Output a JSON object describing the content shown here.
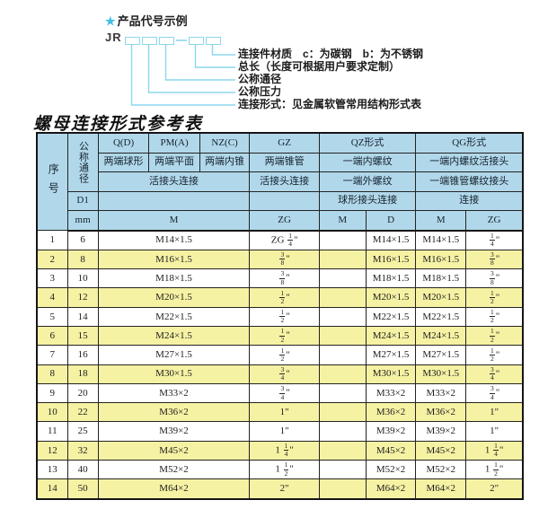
{
  "colors": {
    "header_bg": "#b1d8ea",
    "alt_row_bg": "#f6f2a4",
    "diagram_line": "#8cd7ec",
    "star": "#3fc0e4",
    "border": "#151515"
  },
  "diagram": {
    "star": "★",
    "heading": "产品代号示例",
    "code_prefix": "JR",
    "separator": "-",
    "boxes_before_dash": 3,
    "boxes_after_dash": 2,
    "labels": [
      "连接件材质　c：为碳钢　b：为不锈钢",
      "总长（长度可根据用户要求定制）",
      "公称通径",
      "公称压力",
      "连接形式：见金属软管常用结构形式表"
    ]
  },
  "table": {
    "title": "螺母连接形式参考表",
    "header": {
      "seq": "序号",
      "dn": "公称通径",
      "d1": "D1",
      "mm": "mm",
      "col_q": "Q(D)",
      "col_pm": "PM(A)",
      "col_nz": "NZ(C)",
      "col_gz": "GZ",
      "col_qz": "QZ形式",
      "col_qg": "QG形式",
      "q_desc": "两端球形",
      "pm_desc": "两端平面",
      "nz_desc": "两端内锥",
      "gz_desc": "两端锥管",
      "qz_desc1": "一端内螺纹",
      "qg_desc1": "一端内螺纹活接头",
      "union_conn": "活接头连接",
      "gz_conn": "活接头连接",
      "qz_desc2": "一端外螺纹",
      "qg_desc2": "一端锥管螺纹接头",
      "qz_conn": "球形接头连接",
      "qg_conn": "连接",
      "m_label": "M",
      "zg_label": "ZG",
      "qz_m_label": "M",
      "qz_d_label": "D",
      "qg_m_label": "M",
      "qg_zg_label": "ZG"
    },
    "rows": [
      {
        "no": "1",
        "dn": "6",
        "m": "M14×1.5",
        "gz": "ZG 1/4\"",
        "qz_m": "",
        "qz_d": "M14×1.5",
        "qg_m": "M14×1.5",
        "qg_zg": "1/4\""
      },
      {
        "no": "2",
        "dn": "8",
        "m": "M16×1.5",
        "gz": "3/8\"",
        "qz_m": "",
        "qz_d": "M16×1.5",
        "qg_m": "M16×1.5",
        "qg_zg": "3/8\""
      },
      {
        "no": "3",
        "dn": "10",
        "m": "M18×1.5",
        "gz": "3/8\"",
        "qz_m": "",
        "qz_d": "M18×1.5",
        "qg_m": "M18×1.5",
        "qg_zg": "3/8\""
      },
      {
        "no": "4",
        "dn": "12",
        "m": "M20×1.5",
        "gz": "1/2\"",
        "qz_m": "",
        "qz_d": "M20×1.5",
        "qg_m": "M20×1.5",
        "qg_zg": "1/2\""
      },
      {
        "no": "5",
        "dn": "14",
        "m": "M22×1.5",
        "gz": "1/2\"",
        "qz_m": "",
        "qz_d": "M22×1.5",
        "qg_m": "M22×1.5",
        "qg_zg": "1/2\""
      },
      {
        "no": "6",
        "dn": "15",
        "m": "M24×1.5",
        "gz": "1/2\"",
        "qz_m": "",
        "qz_d": "M24×1.5",
        "qg_m": "M24×1.5",
        "qg_zg": "1/2\""
      },
      {
        "no": "7",
        "dn": "16",
        "m": "M27×1.5",
        "gz": "1/2\"",
        "qz_m": "",
        "qz_d": "M27×1.5",
        "qg_m": "M27×1.5",
        "qg_zg": "1/2\""
      },
      {
        "no": "8",
        "dn": "18",
        "m": "M30×1.5",
        "gz": "3/4\"",
        "qz_m": "",
        "qz_d": "M30×1.5",
        "qg_m": "M30×1.5",
        "qg_zg": "3/4\""
      },
      {
        "no": "9",
        "dn": "20",
        "m": "M33×2",
        "gz": "3/4\"",
        "qz_m": "",
        "qz_d": "M33×2",
        "qg_m": "M33×2",
        "qg_zg": "3/4\""
      },
      {
        "no": "10",
        "dn": "22",
        "m": "M36×2",
        "gz": "1\"",
        "qz_m": "",
        "qz_d": "M36×2",
        "qg_m": "M36×2",
        "qg_zg": "1\""
      },
      {
        "no": "11",
        "dn": "25",
        "m": "M39×2",
        "gz": "1\"",
        "qz_m": "",
        "qz_d": "M39×2",
        "qg_m": "M39×2",
        "qg_zg": "1\""
      },
      {
        "no": "12",
        "dn": "32",
        "m": "M45×2",
        "gz": "1 1/4\"",
        "qz_m": "",
        "qz_d": "M45×2",
        "qg_m": "M45×2",
        "qg_zg": "1 1/4\""
      },
      {
        "no": "13",
        "dn": "40",
        "m": "M52×2",
        "gz": "1 1/2\"",
        "qz_m": "",
        "qz_d": "M52×2",
        "qg_m": "M52×2",
        "qg_zg": "1 1/2\""
      },
      {
        "no": "14",
        "dn": "50",
        "m": "M64×2",
        "gz": "2\"",
        "qz_m": "",
        "qz_d": "M64×2",
        "qg_m": "M64×2",
        "qg_zg": "2\""
      }
    ]
  }
}
